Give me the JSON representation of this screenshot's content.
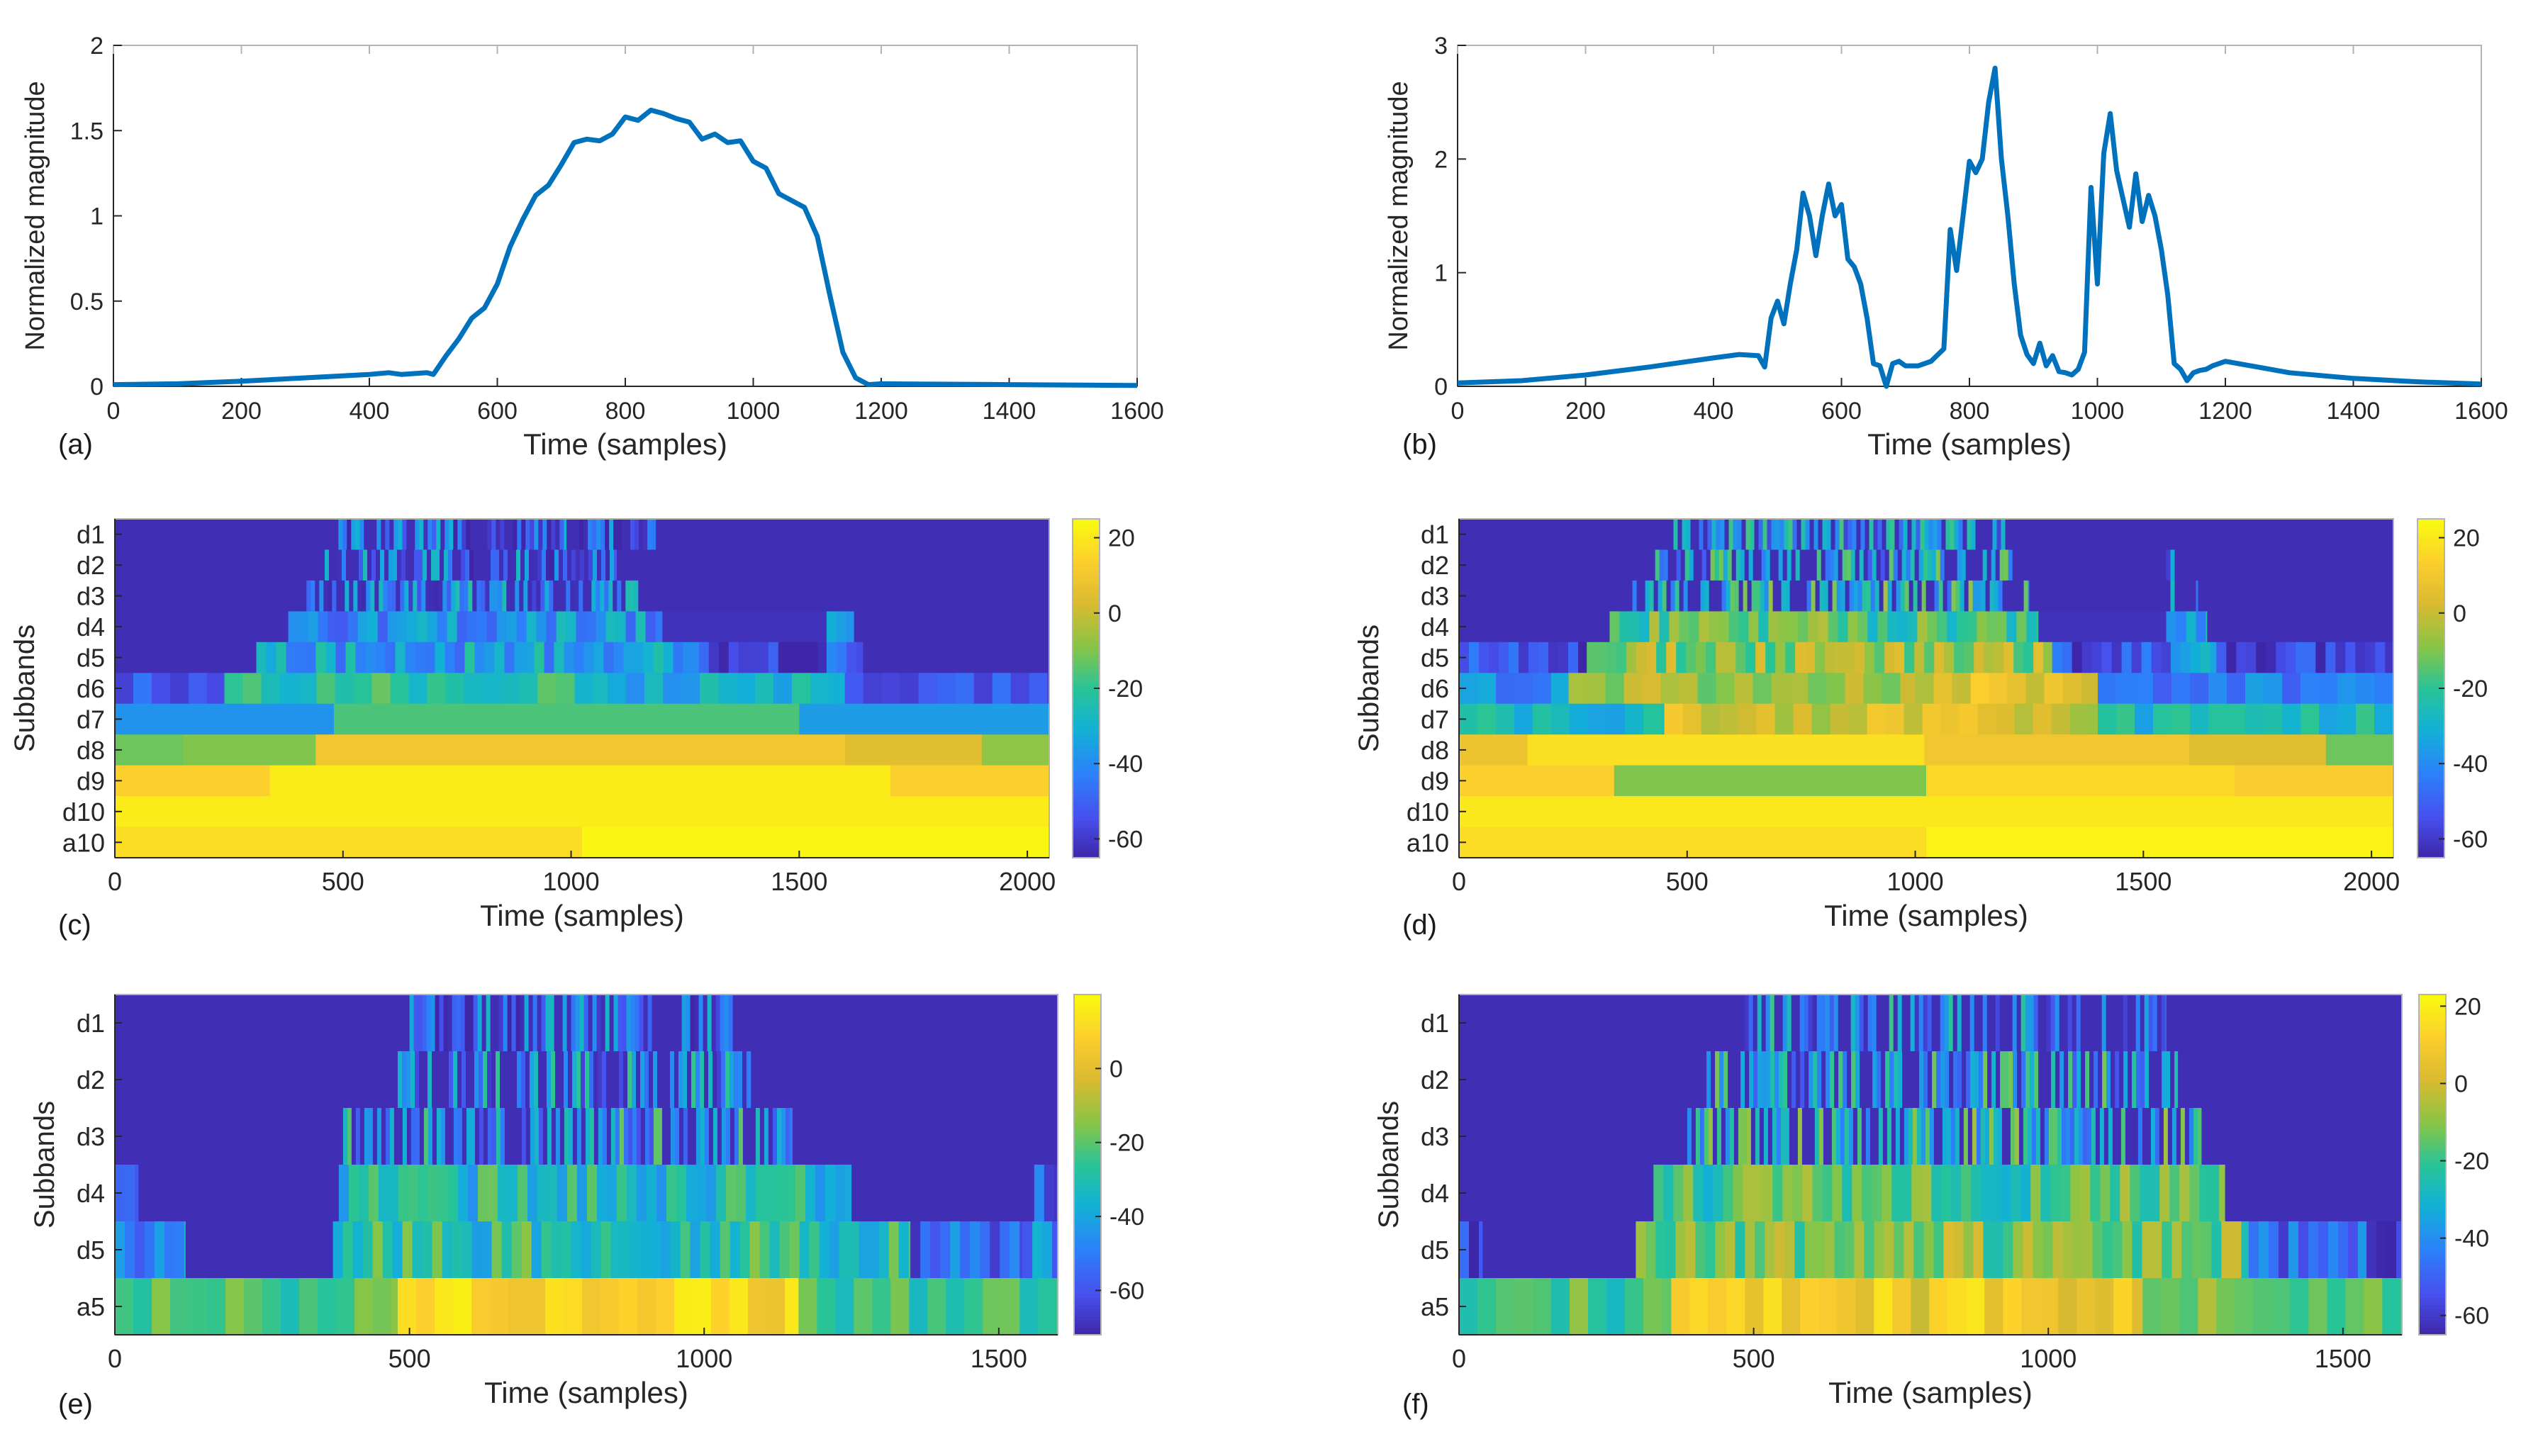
{
  "figure": {
    "background": "#ffffff",
    "line_color": "#0072BD",
    "axis_color": "#262626",
    "box_color": "#b3b3b3"
  },
  "chart_data": [
    {
      "panel": "(a)",
      "type": "line",
      "xlabel": "Time (samples)",
      "ylabel": "Normalized magnitude",
      "xlim": [
        0,
        1600
      ],
      "ylim": [
        0,
        2
      ],
      "xticks": [
        0,
        200,
        400,
        600,
        800,
        1000,
        1200,
        1400,
        1600
      ],
      "yticks": [
        0,
        0.5,
        1,
        1.5,
        2
      ],
      "ytick_labels": [
        "0",
        "0.5",
        "1",
        "1.5",
        "2"
      ],
      "series": [
        {
          "name": "magnitude",
          "x": [
            0,
            100,
            200,
            300,
            400,
            430,
            450,
            470,
            490,
            500,
            520,
            540,
            560,
            580,
            600,
            620,
            640,
            660,
            680,
            700,
            720,
            740,
            760,
            780,
            800,
            820,
            840,
            860,
            880,
            900,
            920,
            940,
            960,
            980,
            1000,
            1020,
            1040,
            1060,
            1080,
            1100,
            1120,
            1140,
            1160,
            1180,
            1200,
            1400,
            1600
          ],
          "y": [
            0.01,
            0.015,
            0.03,
            0.05,
            0.07,
            0.08,
            0.07,
            0.075,
            0.08,
            0.07,
            0.18,
            0.28,
            0.4,
            0.46,
            0.6,
            0.82,
            0.98,
            1.12,
            1.18,
            1.3,
            1.43,
            1.45,
            1.44,
            1.48,
            1.58,
            1.56,
            1.62,
            1.6,
            1.57,
            1.55,
            1.45,
            1.48,
            1.43,
            1.44,
            1.32,
            1.28,
            1.13,
            1.09,
            1.05,
            0.88,
            0.53,
            0.2,
            0.05,
            0.01,
            0.015,
            0.01,
            0.005
          ]
        }
      ]
    },
    {
      "panel": "(b)",
      "type": "line",
      "xlabel": "Time (samples)",
      "ylabel": "Normalized magnitude",
      "xlim": [
        0,
        1600
      ],
      "ylim": [
        0,
        3
      ],
      "xticks": [
        0,
        200,
        400,
        600,
        800,
        1000,
        1200,
        1400,
        1600
      ],
      "yticks": [
        0,
        1,
        2,
        3
      ],
      "ytick_labels": [
        "0",
        "1",
        "2",
        "3"
      ],
      "series": [
        {
          "name": "magnitude",
          "x": [
            0,
            100,
            200,
            300,
            400,
            440,
            470,
            480,
            490,
            500,
            510,
            520,
            530,
            540,
            550,
            560,
            570,
            580,
            590,
            600,
            610,
            620,
            630,
            640,
            650,
            660,
            670,
            680,
            690,
            700,
            720,
            740,
            760,
            770,
            780,
            790,
            800,
            810,
            820,
            830,
            840,
            850,
            860,
            870,
            880,
            890,
            900,
            910,
            920,
            930,
            940,
            950,
            960,
            970,
            980,
            990,
            1000,
            1010,
            1020,
            1030,
            1040,
            1050,
            1060,
            1070,
            1080,
            1090,
            1100,
            1110,
            1120,
            1130,
            1140,
            1150,
            1160,
            1170,
            1180,
            1200,
            1250,
            1300,
            1400,
            1500,
            1600
          ],
          "y": [
            0.03,
            0.05,
            0.1,
            0.17,
            0.25,
            0.28,
            0.27,
            0.17,
            0.6,
            0.75,
            0.55,
            0.9,
            1.2,
            1.7,
            1.5,
            1.15,
            1.5,
            1.78,
            1.5,
            1.6,
            1.12,
            1.05,
            0.9,
            0.6,
            0.2,
            0.18,
            0.0,
            0.2,
            0.22,
            0.18,
            0.18,
            0.22,
            0.33,
            1.38,
            1.02,
            1.5,
            1.98,
            1.88,
            2.0,
            2.5,
            2.8,
            2.0,
            1.5,
            0.9,
            0.45,
            0.28,
            0.2,
            0.38,
            0.18,
            0.27,
            0.13,
            0.12,
            0.1,
            0.15,
            0.3,
            1.75,
            0.9,
            2.05,
            2.4,
            1.9,
            1.65,
            1.4,
            1.87,
            1.45,
            1.68,
            1.5,
            1.2,
            0.8,
            0.2,
            0.15,
            0.05,
            0.12,
            0.14,
            0.15,
            0.18,
            0.22,
            0.17,
            0.12,
            0.07,
            0.04,
            0.02
          ]
        }
      ]
    },
    {
      "panel": "(c)",
      "type": "heatmap",
      "xlabel": "Time (samples)",
      "ylabel": "Subbands",
      "xlim": [
        0,
        2048
      ],
      "xticks": [
        0,
        500,
        1000,
        1500,
        2000
      ],
      "rows": [
        "d1",
        "d2",
        "d3",
        "d4",
        "d5",
        "d6",
        "d7",
        "d8",
        "d9",
        "d10",
        "a10"
      ],
      "clim": [
        -65,
        25
      ],
      "colorbar_ticks": [
        20,
        0,
        -20,
        -40,
        -60
      ],
      "row_segments": [
        [
          [
            0,
            490,
            -63
          ],
          [
            490,
            990,
            -50
          ],
          [
            990,
            1190,
            -52
          ],
          [
            1190,
            2048,
            -63
          ]
        ],
        [
          [
            0,
            460,
            -63
          ],
          [
            460,
            1100,
            -46
          ],
          [
            1100,
            2048,
            -63
          ]
        ],
        [
          [
            0,
            420,
            -63
          ],
          [
            420,
            1150,
            -42
          ],
          [
            1150,
            2048,
            -63
          ]
        ],
        [
          [
            0,
            380,
            -63
          ],
          [
            380,
            1200,
            -38
          ],
          [
            1200,
            1560,
            -62
          ],
          [
            1560,
            1620,
            -45
          ],
          [
            1620,
            2048,
            -63
          ]
        ],
        [
          [
            0,
            310,
            -63
          ],
          [
            310,
            1280,
            -35
          ],
          [
            1280,
            1560,
            -60
          ],
          [
            1560,
            1640,
            -48
          ],
          [
            1640,
            2048,
            -63
          ]
        ],
        [
          [
            0,
            240,
            -50
          ],
          [
            240,
            1080,
            -22
          ],
          [
            1080,
            1600,
            -30
          ],
          [
            1600,
            2048,
            -55
          ]
        ],
        [
          [
            0,
            480,
            -38
          ],
          [
            480,
            1500,
            -16
          ],
          [
            1500,
            2048,
            -36
          ]
        ],
        [
          [
            0,
            150,
            -12
          ],
          [
            150,
            440,
            -10
          ],
          [
            440,
            1600,
            10
          ],
          [
            1600,
            1900,
            5
          ],
          [
            1900,
            2048,
            -8
          ]
        ],
        [
          [
            0,
            340,
            14
          ],
          [
            340,
            1700,
            21
          ],
          [
            1700,
            2048,
            14
          ]
        ],
        [
          [
            0,
            2048,
            21
          ]
        ],
        [
          [
            0,
            1024,
            17
          ],
          [
            1024,
            2048,
            24
          ]
        ]
      ],
      "noise_rows": [
        0,
        1,
        2,
        3,
        4,
        5
      ]
    },
    {
      "panel": "(d)",
      "type": "heatmap",
      "xlabel": "Time (samples)",
      "ylabel": "Subbands",
      "xlim": [
        0,
        2048
      ],
      "xticks": [
        0,
        500,
        1000,
        1500,
        2000
      ],
      "rows": [
        "d1",
        "d2",
        "d3",
        "d4",
        "d5",
        "d6",
        "d7",
        "d8",
        "d9",
        "d10",
        "a10"
      ],
      "clim": [
        -65,
        25
      ],
      "colorbar_ticks": [
        20,
        0,
        -20,
        -40,
        -60
      ],
      "row_segments": [
        [
          [
            0,
            470,
            -63
          ],
          [
            470,
            1200,
            -38
          ],
          [
            1200,
            2048,
            -63
          ]
        ],
        [
          [
            0,
            430,
            -63
          ],
          [
            430,
            1220,
            -32
          ],
          [
            1220,
            1550,
            -63
          ],
          [
            1550,
            1610,
            -42
          ],
          [
            1610,
            2048,
            -63
          ]
        ],
        [
          [
            0,
            380,
            -63
          ],
          [
            380,
            1250,
            -26
          ],
          [
            1250,
            1550,
            -63
          ],
          [
            1550,
            1620,
            -38
          ],
          [
            1620,
            2048,
            -63
          ]
        ],
        [
          [
            0,
            330,
            -63
          ],
          [
            330,
            1270,
            -16
          ],
          [
            1270,
            1550,
            -62
          ],
          [
            1550,
            1640,
            -35
          ],
          [
            1640,
            2048,
            -63
          ]
        ],
        [
          [
            0,
            280,
            -55
          ],
          [
            280,
            1300,
            -8
          ],
          [
            1300,
            1560,
            -55
          ],
          [
            1560,
            1660,
            -30
          ],
          [
            1660,
            2048,
            -60
          ]
        ],
        [
          [
            0,
            240,
            -42
          ],
          [
            240,
            1000,
            -6
          ],
          [
            1000,
            1400,
            4
          ],
          [
            1400,
            2048,
            -42
          ]
        ],
        [
          [
            0,
            450,
            -28
          ],
          [
            450,
            1400,
            2
          ],
          [
            1400,
            2048,
            -25
          ]
        ],
        [
          [
            0,
            150,
            8
          ],
          [
            150,
            1020,
            18
          ],
          [
            1020,
            1600,
            10
          ],
          [
            1600,
            1900,
            5
          ],
          [
            1900,
            2048,
            -12
          ]
        ],
        [
          [
            0,
            340,
            14
          ],
          [
            340,
            1024,
            -10
          ],
          [
            1024,
            1700,
            16
          ],
          [
            1700,
            2048,
            12
          ]
        ],
        [
          [
            0,
            2048,
            20
          ]
        ],
        [
          [
            0,
            1024,
            17
          ],
          [
            1024,
            2048,
            23
          ]
        ]
      ],
      "noise_rows": [
        0,
        1,
        2,
        3,
        4,
        5,
        6
      ]
    },
    {
      "panel": "(e)",
      "type": "heatmap",
      "xlabel": "Time (samples)",
      "ylabel": "Subbands",
      "xlim": [
        0,
        1600
      ],
      "xticks": [
        0,
        500,
        1000,
        1500
      ],
      "rows": [
        "d1",
        "d2",
        "d3",
        "d4",
        "d5",
        "a5"
      ],
      "clim": [
        -72,
        20
      ],
      "colorbar_ticks": [
        0,
        -20,
        -40,
        -60
      ],
      "row_segments": [
        [
          [
            0,
            500,
            -70
          ],
          [
            500,
            1050,
            -55
          ],
          [
            1050,
            1600,
            -70
          ]
        ],
        [
          [
            0,
            480,
            -70
          ],
          [
            480,
            1080,
            -45
          ],
          [
            1080,
            1600,
            -70
          ]
        ],
        [
          [
            0,
            380,
            -70
          ],
          [
            380,
            1150,
            -40
          ],
          [
            1150,
            1600,
            -70
          ]
        ],
        [
          [
            0,
            40,
            -55
          ],
          [
            40,
            380,
            -70
          ],
          [
            380,
            1250,
            -32
          ],
          [
            1250,
            1560,
            -70
          ],
          [
            1560,
            1600,
            -55
          ]
        ],
        [
          [
            0,
            120,
            -45
          ],
          [
            120,
            370,
            -70
          ],
          [
            370,
            1350,
            -28
          ],
          [
            1350,
            1540,
            -55
          ],
          [
            1540,
            1600,
            -48
          ]
        ],
        [
          [
            0,
            480,
            -22
          ],
          [
            480,
            1160,
            12
          ],
          [
            1160,
            1600,
            -25
          ]
        ]
      ],
      "noise_rows": [
        0,
        1,
        2,
        3,
        4,
        5
      ]
    },
    {
      "panel": "(f)",
      "type": "heatmap",
      "xlabel": "Time (samples)",
      "ylabel": "Subbands",
      "xlim": [
        0,
        1600
      ],
      "xticks": [
        0,
        500,
        1000,
        1500
      ],
      "rows": [
        "d1",
        "d2",
        "d3",
        "d4",
        "d5",
        "a5"
      ],
      "clim": [
        -65,
        23
      ],
      "colorbar_ticks": [
        20,
        0,
        -20,
        -40,
        -60
      ],
      "row_segments": [
        [
          [
            0,
            470,
            -63
          ],
          [
            470,
            1200,
            -40
          ],
          [
            1200,
            1600,
            -63
          ]
        ],
        [
          [
            0,
            420,
            -63
          ],
          [
            420,
            1220,
            -34
          ],
          [
            1220,
            1600,
            -63
          ]
        ],
        [
          [
            0,
            380,
            -63
          ],
          [
            380,
            1260,
            -28
          ],
          [
            1260,
            1600,
            -63
          ]
        ],
        [
          [
            0,
            330,
            -63
          ],
          [
            330,
            1300,
            -18
          ],
          [
            1300,
            1600,
            -63
          ]
        ],
        [
          [
            0,
            40,
            -55
          ],
          [
            40,
            300,
            -63
          ],
          [
            300,
            1340,
            -12
          ],
          [
            1340,
            1540,
            -50
          ],
          [
            1540,
            1600,
            -60
          ]
        ],
        [
          [
            0,
            360,
            -18
          ],
          [
            360,
            1160,
            8
          ],
          [
            1160,
            1600,
            -14
          ]
        ]
      ],
      "noise_rows": [
        0,
        1,
        2,
        3,
        4,
        5
      ]
    }
  ]
}
